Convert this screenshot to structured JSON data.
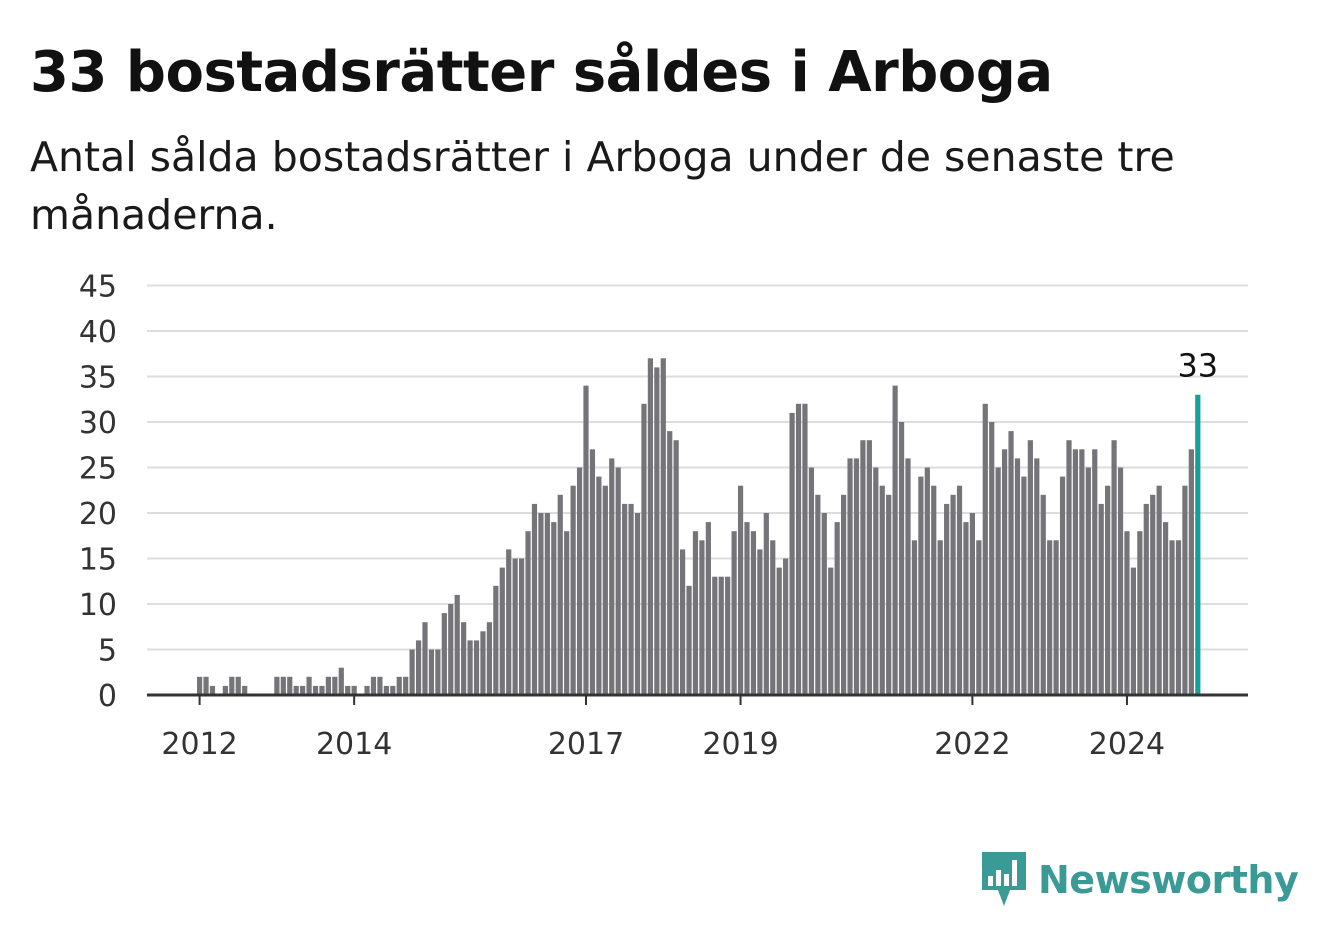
{
  "title": "33 bostadsrätter såldes i Arboga",
  "subtitle": "Antal sålda bostadsrätter i Arboga under de senaste tre månaderna.",
  "brand": {
    "name": "Newsworthy",
    "color": "#3a9a96",
    "icon": "newsworthy-logo-icon"
  },
  "colors": {
    "bar": "#757479",
    "highlight": "#17a099",
    "grid": "#dddddd",
    "axis": "#333333"
  },
  "chart_data": {
    "type": "bar",
    "x_start": "2012-01",
    "x_unit": "month",
    "x_ticks": [
      "2012",
      "2014",
      "2017",
      "2019",
      "2022",
      "2024"
    ],
    "y_ticks": [
      0,
      5,
      10,
      15,
      20,
      25,
      30,
      35,
      40,
      45
    ],
    "ylim": [
      0,
      45
    ],
    "grid": true,
    "highlight_last": true,
    "last_value_label": "33",
    "values": [
      2,
      2,
      1,
      0,
      1,
      2,
      2,
      1,
      0,
      0,
      0,
      0,
      2,
      2,
      2,
      1,
      1,
      2,
      1,
      1,
      2,
      2,
      3,
      1,
      1,
      0,
      1,
      2,
      2,
      1,
      1,
      2,
      2,
      5,
      6,
      8,
      5,
      5,
      9,
      10,
      11,
      8,
      6,
      6,
      7,
      8,
      12,
      14,
      16,
      15,
      15,
      18,
      21,
      20,
      20,
      19,
      22,
      18,
      23,
      25,
      34,
      27,
      24,
      23,
      26,
      25,
      21,
      21,
      20,
      32,
      37,
      36,
      37,
      29,
      28,
      16,
      12,
      18,
      17,
      19,
      13,
      13,
      13,
      18,
      23,
      19,
      18,
      16,
      20,
      17,
      14,
      15,
      31,
      32,
      32,
      25,
      22,
      20,
      14,
      19,
      22,
      26,
      26,
      28,
      28,
      25,
      23,
      22,
      34,
      30,
      26,
      17,
      24,
      25,
      23,
      17,
      21,
      22,
      23,
      19,
      20,
      17,
      32,
      30,
      25,
      27,
      29,
      26,
      24,
      28,
      26,
      22,
      17,
      17,
      24,
      28,
      27,
      27,
      25,
      27,
      21,
      23,
      28,
      25,
      18,
      14,
      18,
      21,
      22,
      23,
      19,
      17,
      17,
      23,
      27,
      33
    ]
  }
}
